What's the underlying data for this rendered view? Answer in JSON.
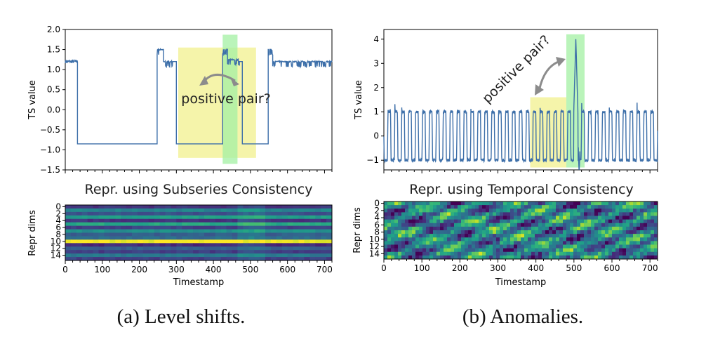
{
  "chart_data": [
    {
      "type": "line",
      "panel": "a",
      "ylabel": "TS value",
      "xlim": [
        0,
        720
      ],
      "ylim": [
        -1.5,
        2.0
      ],
      "yticks": [
        "2.0",
        "1.5",
        "1.0",
        "0.5",
        "0.0",
        "−0.5",
        "−1.0",
        "−1.5"
      ],
      "x_major_ticks": [
        0,
        100,
        200,
        300,
        400,
        500,
        600,
        700
      ],
      "series": [
        {
          "segments": [
            {
              "x0": 0,
              "x1": 33,
              "level": 1.2,
              "noise": "small"
            },
            {
              "x0": 33,
              "x1": 248,
              "level": -0.85
            },
            {
              "x0": 248,
              "x1": 265,
              "level": 1.5,
              "noise": "spikes"
            },
            {
              "x0": 265,
              "x1": 290,
              "level": 1.2,
              "noise": "spikes"
            },
            {
              "x0": 290,
              "x1": 300,
              "level": 1.2
            },
            {
              "x0": 300,
              "x1": 425,
              "level": -0.85
            },
            {
              "x0": 425,
              "x1": 438,
              "level": 1.5,
              "noise": "spikes"
            },
            {
              "x0": 438,
              "x1": 470,
              "level": 1.25,
              "noise": "spikes"
            },
            {
              "x0": 470,
              "x1": 478,
              "level": 1.2
            },
            {
              "x0": 478,
              "x1": 548,
              "level": -0.85
            },
            {
              "x0": 548,
              "x1": 560,
              "level": 1.5,
              "noise": "spikes"
            },
            {
              "x0": 560,
              "x1": 720,
              "level": 1.2,
              "noise": "spikes"
            }
          ]
        }
      ],
      "highlights": [
        {
          "x0": 305,
          "x1": 515,
          "color": "#f2f08e"
        },
        {
          "x0": 425,
          "x1": 465,
          "color": "#a3f0a3"
        }
      ],
      "annotation": "positive pair?",
      "title_below": "Repr. using Subseries Consistency"
    },
    {
      "type": "heatmap",
      "panel": "a",
      "ylabel": "Repr dims",
      "xlabel": "Timestamp",
      "yticks": [
        "0",
        "2",
        "4",
        "6",
        "8",
        "10",
        "12",
        "14"
      ],
      "xticks": [
        "0",
        "100",
        "200",
        "300",
        "400",
        "500",
        "600",
        "700"
      ],
      "rows": 16,
      "xlim": [
        0,
        720
      ],
      "pattern": "horizontal bands, bright yellow at dim 10"
    },
    {
      "type": "line",
      "panel": "b",
      "ylabel": "TS value",
      "xlim": [
        0,
        720
      ],
      "ylim": [
        -1.4,
        4.4
      ],
      "yticks": [
        "4",
        "3",
        "2",
        "1",
        "0",
        "−1"
      ],
      "x_major_ticks": [
        0,
        100,
        200,
        300,
        400,
        500,
        600,
        700
      ],
      "series": [
        {
          "pattern": "square wave between -1 and 1, period about 18",
          "anomaly": {
            "x": 505,
            "peak": 4.0
          }
        }
      ],
      "highlights": [
        {
          "x0": 385,
          "x1": 480,
          "color": "#f2f08e"
        },
        {
          "x0": 480,
          "x1": 528,
          "color": "#a3f0a3"
        }
      ],
      "annotation": "positive pair?",
      "title_below": "Repr. using Temporal Consistency"
    },
    {
      "type": "heatmap",
      "panel": "b",
      "ylabel": "Repr dims",
      "xlabel": "Timestamp",
      "yticks": [
        "0",
        "2",
        "4",
        "6",
        "8",
        "10",
        "12",
        "14"
      ],
      "xticks": [
        "0",
        "100",
        "200",
        "300",
        "400",
        "500",
        "600",
        "700"
      ],
      "rows": 16,
      "xlim": [
        0,
        720
      ],
      "pattern": "mottled texture"
    }
  ],
  "captions": {
    "a": "(a) Level shifts.",
    "b": "(b) Anomalies."
  },
  "colors": {
    "line": "#3d6fa9",
    "highlight_yellow": "#f2f08e",
    "highlight_green": "#a3f0a3",
    "arrow": "#8c8c8c"
  }
}
